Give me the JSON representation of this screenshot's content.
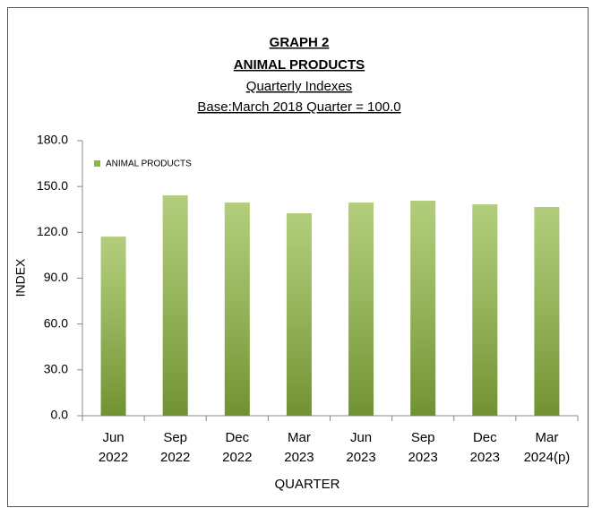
{
  "chart_data": {
    "type": "bar",
    "title": "GRAPH 2",
    "subtitle": "ANIMAL PRODUCTS",
    "subtitle2": "Quarterly Indexes",
    "subtitle3": "Base:March 2018 Quarter = 100.0",
    "x_label": "QUARTER",
    "y_label": "INDEX",
    "categories": [
      "Jun 2022",
      "Sep 2022",
      "Dec 2022",
      "Mar 2023",
      "Jun 2023",
      "Sep 2023",
      "Dec 2023",
      "Mar 2024(p)"
    ],
    "series": [
      {
        "name": "ANIMAL PRODUCTS",
        "color": "#8db63e",
        "values": [
          117.2,
          144.2,
          139.5,
          132.5,
          139.5,
          140.7,
          138.3,
          136.6
        ]
      }
    ],
    "ylim": [
      0,
      180
    ],
    "yticks": [
      {
        "value": 0,
        "label": "0.0"
      },
      {
        "value": 30,
        "label": "30.0"
      },
      {
        "value": 60,
        "label": "60.0"
      },
      {
        "value": 90,
        "label": "90.0"
      },
      {
        "value": 120,
        "label": "120.0"
      },
      {
        "value": 150,
        "label": "150.0"
      },
      {
        "value": 180,
        "label": "180.0"
      }
    ],
    "grid": false,
    "legend": "upper left"
  }
}
